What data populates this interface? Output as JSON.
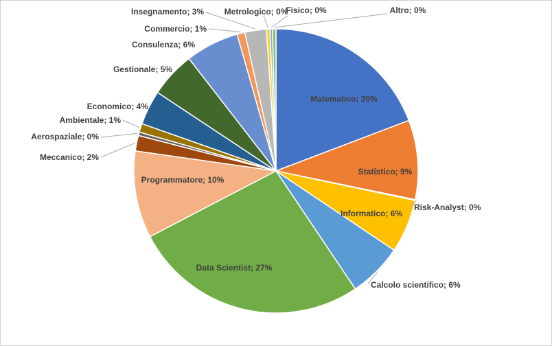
{
  "chart_data": {
    "type": "pie",
    "title": "",
    "start_angle_deg": 0,
    "direction": "clockwise",
    "slices": [
      {
        "label": "Matematico; 20%",
        "category": "Matematico",
        "value": 19.6,
        "color": "#4472C4",
        "label_inside": true
      },
      {
        "label": "Statistico; 9%",
        "category": "Statistico",
        "value": 9.2,
        "color": "#ED7D31",
        "label_inside": true
      },
      {
        "label": "Risk-Analyst; 0%",
        "category": "Risk-Analyst",
        "value": 0.1,
        "color": "#A5A5A5",
        "label_inside": false
      },
      {
        "label": "Informatico; 6%",
        "category": "Informatico",
        "value": 6.2,
        "color": "#FFC000",
        "label_inside": true
      },
      {
        "label": "Calcolo scientifico; 6%",
        "category": "Calcolo scientifico",
        "value": 6.3,
        "color": "#5B9BD5",
        "label_inside": false
      },
      {
        "label": "Data Scientist; 27%",
        "category": "Data Scientist",
        "value": 27.3,
        "color": "#70AD47",
        "label_inside": true
      },
      {
        "label": "Programmatore; 10%",
        "category": "Programmatore",
        "value": 10.1,
        "color": "#F4B183",
        "label_inside": true
      },
      {
        "label": "Meccanico; 2%",
        "category": "Meccanico",
        "value": 1.8,
        "color": "#9E480E",
        "label_inside": false
      },
      {
        "label": "Aerospaziale; 0%",
        "category": "Aerospaziale",
        "value": 0.4,
        "color": "#636363",
        "label_inside": false
      },
      {
        "label": "Ambientale; 1%",
        "category": "Ambientale",
        "value": 1.0,
        "color": "#997300",
        "label_inside": false
      },
      {
        "label": "Economico; 4%",
        "category": "Economico",
        "value": 4.0,
        "color": "#255E91",
        "label_inside": false
      },
      {
        "label": "Gestionale; 5%",
        "category": "Gestionale",
        "value": 5.3,
        "color": "#43682B",
        "label_inside": false
      },
      {
        "label": "Consulenza; 6%",
        "category": "Consulenza",
        "value": 6.2,
        "color": "#698ED0",
        "label_inside": false
      },
      {
        "label": "Commercio; 1%",
        "category": "Commercio",
        "value": 0.9,
        "color": "#F1975A",
        "label_inside": false
      },
      {
        "label": "Insegnamento; 3%",
        "category": "Insegnamento",
        "value": 2.5,
        "color": "#B7B7B7",
        "label_inside": false
      },
      {
        "label": "Metrologico; 0%",
        "category": "Metrologico",
        "value": 0.4,
        "color": "#FFCD33",
        "label_inside": false
      },
      {
        "label": "Fisico; 0%",
        "category": "Fisico",
        "value": 0.3,
        "color": "#7CAFDD",
        "label_inside": false
      },
      {
        "label": "Altro; 0%",
        "category": "Altro",
        "value": 0.4,
        "color": "#8CC168",
        "label_inside": false
      }
    ],
    "legend": "none"
  }
}
